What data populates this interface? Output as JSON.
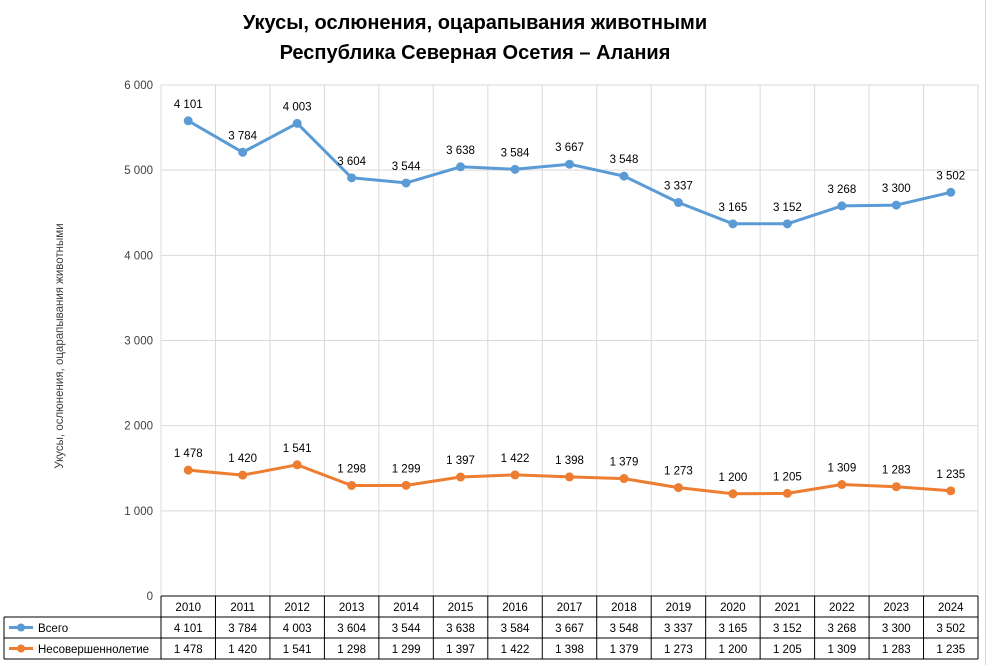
{
  "chart_data": {
    "type": "line",
    "title": "Укусы, ослюнения, оцарапывания животными",
    "subtitle": "Республика Северная Осетия – Алания",
    "ylabel": "Укусы, ослюнения, оцарапывания животными",
    "xlabel": "",
    "ylim": [
      0,
      6000
    ],
    "yticks": [
      0,
      1000,
      2000,
      3000,
      4000,
      5000,
      6000
    ],
    "ytick_labels": [
      "0",
      "1 000",
      "2 000",
      "3 000",
      "4 000",
      "5 000",
      "6 000"
    ],
    "grid": true,
    "legend": "data-table-below",
    "categories": [
      "2010",
      "2011",
      "2012",
      "2013",
      "2014",
      "2015",
      "2016",
      "2017",
      "2018",
      "2019",
      "2020",
      "2021",
      "2022",
      "2023",
      "2024"
    ],
    "series": [
      {
        "name": "Всего",
        "color": "#5b9bd5",
        "values": [
          5580,
          5210,
          5550,
          4910,
          4850,
          5040,
          5010,
          5070,
          4930,
          4620,
          4370,
          4370,
          4580,
          4590,
          4740
        ],
        "labels": [
          "4 101",
          "3 784",
          "4 003",
          "3 604",
          "3 544",
          "3 638",
          "3 584",
          "3 667",
          "3 548",
          "3 337",
          "3 165",
          "3 152",
          "3 268",
          "3 300",
          "3 502"
        ]
      },
      {
        "name": "Несовершеннолетие",
        "color": "#ed7d31",
        "values": [
          1478,
          1420,
          1541,
          1298,
          1299,
          1397,
          1422,
          1398,
          1379,
          1273,
          1200,
          1205,
          1309,
          1283,
          1235
        ],
        "labels": [
          "1 478",
          "1 420",
          "1 541",
          "1 298",
          "1 299",
          "1 397",
          "1 422",
          "1 398",
          "1 379",
          "1 273",
          "1 200",
          "1 205",
          "1 309",
          "1 283",
          "1 235"
        ]
      }
    ]
  }
}
